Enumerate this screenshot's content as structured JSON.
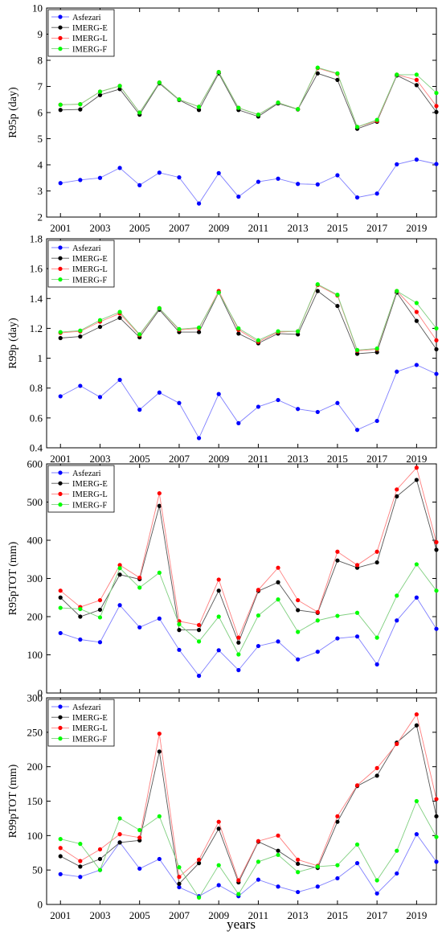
{
  "figure": {
    "xlabel": "years"
  },
  "chart_data": [
    {
      "type": "line",
      "ylabel": "R95p (day)",
      "xlim": [
        2000.3,
        2020
      ],
      "ylim": [
        2,
        10
      ],
      "yticks": [
        2,
        3,
        4,
        5,
        6,
        7,
        8,
        9,
        10
      ],
      "ytick_labels": [
        "2",
        "3",
        "4",
        "5",
        "6",
        "7",
        "8",
        "9",
        "10"
      ],
      "xticks": [
        2001,
        2003,
        2005,
        2007,
        2009,
        2011,
        2013,
        2015,
        2017,
        2019
      ],
      "xtick_labels": [
        "2001",
        "2003",
        "2005",
        "2007",
        "2009",
        "2011",
        "2013",
        "2015",
        "2017",
        "2019"
      ],
      "x": [
        2001,
        2002,
        2003,
        2004,
        2005,
        2006,
        2007,
        2008,
        2009,
        2010,
        2011,
        2012,
        2013,
        2014,
        2015,
        2016,
        2017,
        2018,
        2019,
        2020
      ],
      "legend": "top-left",
      "series": [
        {
          "name": "Asfezari",
          "color": "#0000ff",
          "line": "#7f7fff",
          "values": [
            3.3,
            3.42,
            3.5,
            3.88,
            3.22,
            3.7,
            3.52,
            2.52,
            3.68,
            2.78,
            3.35,
            3.47,
            3.27,
            3.25,
            3.6,
            2.75,
            2.9,
            4.02,
            4.2,
            4.03
          ]
        },
        {
          "name": "IMERG-E",
          "color": "#000000",
          "line": "#555555",
          "values": [
            6.1,
            6.12,
            6.67,
            6.9,
            5.92,
            7.12,
            6.48,
            6.1,
            7.5,
            6.1,
            5.85,
            6.35,
            6.12,
            7.5,
            7.25,
            5.38,
            5.65,
            7.42,
            7.05,
            6.02
          ]
        },
        {
          "name": "IMERG-L",
          "color": "#ff0000",
          "line": "#ff7f7f",
          "values": [
            6.3,
            6.32,
            6.8,
            7.02,
            6.0,
            7.15,
            6.5,
            6.22,
            7.55,
            6.18,
            5.92,
            6.38,
            6.13,
            7.7,
            7.48,
            5.45,
            5.68,
            7.45,
            7.25,
            6.25
          ]
        },
        {
          "name": "IMERG-F",
          "color": "#00ff00",
          "line": "#7fcf7f",
          "values": [
            6.3,
            6.32,
            6.8,
            7.02,
            6.0,
            7.15,
            6.5,
            6.22,
            7.55,
            6.18,
            5.92,
            6.38,
            6.13,
            7.72,
            7.5,
            5.45,
            5.72,
            7.45,
            7.45,
            6.75
          ]
        }
      ]
    },
    {
      "type": "line",
      "ylabel": "R99p (day)",
      "xlim": [
        2000.3,
        2020
      ],
      "ylim": [
        0.4,
        1.8
      ],
      "yticks": [
        0.4,
        0.6,
        0.8,
        1.0,
        1.2,
        1.4,
        1.6,
        1.8
      ],
      "ytick_labels": [
        "0.4",
        "0.6",
        "0.8",
        "1",
        "1.2",
        "1.4",
        "1.6",
        "1.8"
      ],
      "xticks": [
        2001,
        2003,
        2005,
        2007,
        2009,
        2011,
        2013,
        2015,
        2017,
        2019
      ],
      "xtick_labels": [
        "2001",
        "2003",
        "2005",
        "2007",
        "2009",
        "2011",
        "2013",
        "2015",
        "2017",
        "2019"
      ],
      "x": [
        2001,
        2002,
        2003,
        2004,
        2005,
        2006,
        2007,
        2008,
        2009,
        2010,
        2011,
        2012,
        2013,
        2014,
        2015,
        2016,
        2017,
        2018,
        2019,
        2020
      ],
      "legend": "top-left",
      "series": [
        {
          "name": "Asfezari",
          "color": "#0000ff",
          "line": "#7f7fff",
          "values": [
            0.745,
            0.815,
            0.74,
            0.855,
            0.655,
            0.77,
            0.7,
            0.465,
            0.76,
            0.565,
            0.675,
            0.72,
            0.66,
            0.64,
            0.7,
            0.52,
            0.58,
            0.91,
            0.955,
            0.895
          ]
        },
        {
          "name": "IMERG-E",
          "color": "#000000",
          "line": "#555555",
          "values": [
            1.135,
            1.145,
            1.21,
            1.27,
            1.14,
            1.325,
            1.175,
            1.175,
            1.44,
            1.165,
            1.1,
            1.165,
            1.16,
            1.45,
            1.35,
            1.03,
            1.04,
            1.44,
            1.25,
            1.06
          ]
        },
        {
          "name": "IMERG-L",
          "color": "#ff0000",
          "line": "#ff7f7f",
          "values": [
            1.17,
            1.18,
            1.245,
            1.3,
            1.155,
            1.335,
            1.19,
            1.2,
            1.45,
            1.19,
            1.11,
            1.175,
            1.18,
            1.49,
            1.42,
            1.05,
            1.06,
            1.45,
            1.31,
            1.12
          ]
        },
        {
          "name": "IMERG-F",
          "color": "#00ff00",
          "line": "#7fcf7f",
          "values": [
            1.175,
            1.185,
            1.255,
            1.31,
            1.16,
            1.335,
            1.195,
            1.205,
            1.44,
            1.2,
            1.12,
            1.18,
            1.18,
            1.495,
            1.425,
            1.055,
            1.065,
            1.45,
            1.37,
            1.2
          ]
        }
      ]
    },
    {
      "type": "line",
      "ylabel": "R95pTOT (mm)",
      "xlim": [
        2000.3,
        2020
      ],
      "ylim": [
        0,
        600
      ],
      "yticks": [
        0,
        100,
        200,
        300,
        400,
        500,
        600
      ],
      "ytick_labels": [
        "0",
        "100",
        "200",
        "300",
        "400",
        "500",
        "600"
      ],
      "xticks": [
        2001,
        2003,
        2005,
        2007,
        2009,
        2011,
        2013,
        2015,
        2017,
        2019
      ],
      "xtick_labels": [
        "2001",
        "2003",
        "2005",
        "2007",
        "2009",
        "2011",
        "2013",
        "2015",
        "2017",
        "2019"
      ],
      "x": [
        2001,
        2002,
        2003,
        2004,
        2005,
        2006,
        2007,
        2008,
        2009,
        2010,
        2011,
        2012,
        2013,
        2014,
        2015,
        2016,
        2017,
        2018,
        2019,
        2020
      ],
      "legend": "top-left",
      "series": [
        {
          "name": "Asfezari",
          "color": "#0000ff",
          "line": "#7f7fff",
          "values": [
            157,
            140,
            133,
            230,
            172,
            195,
            113,
            45,
            112,
            60,
            123,
            135,
            88,
            108,
            143,
            148,
            75,
            190,
            250,
            168
          ]
        },
        {
          "name": "IMERG-E",
          "color": "#000000",
          "line": "#555555",
          "values": [
            250,
            200,
            218,
            310,
            298,
            490,
            165,
            165,
            268,
            132,
            267,
            290,
            217,
            210,
            347,
            328,
            342,
            515,
            558,
            375
          ]
        },
        {
          "name": "IMERG-L",
          "color": "#ff0000",
          "line": "#ff7f7f",
          "values": [
            268,
            225,
            243,
            335,
            302,
            523,
            188,
            178,
            297,
            145,
            270,
            328,
            243,
            212,
            370,
            335,
            370,
            533,
            590,
            395
          ]
        },
        {
          "name": "IMERG-F",
          "color": "#00ff00",
          "line": "#7fcf7f",
          "values": [
            223,
            220,
            198,
            327,
            276,
            315,
            180,
            135,
            200,
            101,
            203,
            245,
            160,
            190,
            202,
            210,
            145,
            255,
            337,
            268
          ]
        }
      ]
    },
    {
      "type": "line",
      "ylabel": "R99pTOT (mm)",
      "xlim": [
        2000.3,
        2020
      ],
      "ylim": [
        0,
        300
      ],
      "yticks": [
        0,
        50,
        100,
        150,
        200,
        250,
        300
      ],
      "ytick_labels": [
        "0",
        "50",
        "100",
        "150",
        "200",
        "250",
        "300"
      ],
      "xticks": [
        2001,
        2003,
        2005,
        2007,
        2009,
        2011,
        2013,
        2015,
        2017,
        2019
      ],
      "xtick_labels": [
        "2001",
        "2003",
        "2005",
        "2007",
        "2009",
        "2011",
        "2013",
        "2015",
        "2017",
        "2019"
      ],
      "x": [
        2001,
        2002,
        2003,
        2004,
        2005,
        2006,
        2007,
        2008,
        2009,
        2010,
        2011,
        2012,
        2013,
        2014,
        2015,
        2016,
        2017,
        2018,
        2019,
        2020
      ],
      "legend": "top-left",
      "series": [
        {
          "name": "Asfezari",
          "color": "#0000ff",
          "line": "#7f7fff",
          "values": [
            44,
            40,
            50,
            90,
            52,
            66,
            25,
            12,
            28,
            12,
            36,
            26,
            18,
            26,
            38,
            60,
            16,
            45,
            102,
            62
          ]
        },
        {
          "name": "IMERG-E",
          "color": "#000000",
          "line": "#555555",
          "values": [
            70,
            55,
            66,
            90,
            93,
            222,
            30,
            60,
            110,
            32,
            91,
            78,
            59,
            53,
            120,
            172,
            187,
            235,
            260,
            128
          ]
        },
        {
          "name": "IMERG-L",
          "color": "#ff0000",
          "line": "#ff7f7f",
          "values": [
            82,
            63,
            80,
            102,
            97,
            248,
            40,
            65,
            120,
            35,
            92,
            100,
            65,
            56,
            128,
            173,
            198,
            233,
            276,
            153
          ]
        },
        {
          "name": "IMERG-F",
          "color": "#00ff00",
          "line": "#7fcf7f",
          "values": [
            95,
            88,
            50,
            125,
            108,
            128,
            54,
            10,
            57,
            15,
            62,
            72,
            47,
            55,
            57,
            87,
            35,
            78,
            150,
            98
          ]
        }
      ]
    }
  ]
}
